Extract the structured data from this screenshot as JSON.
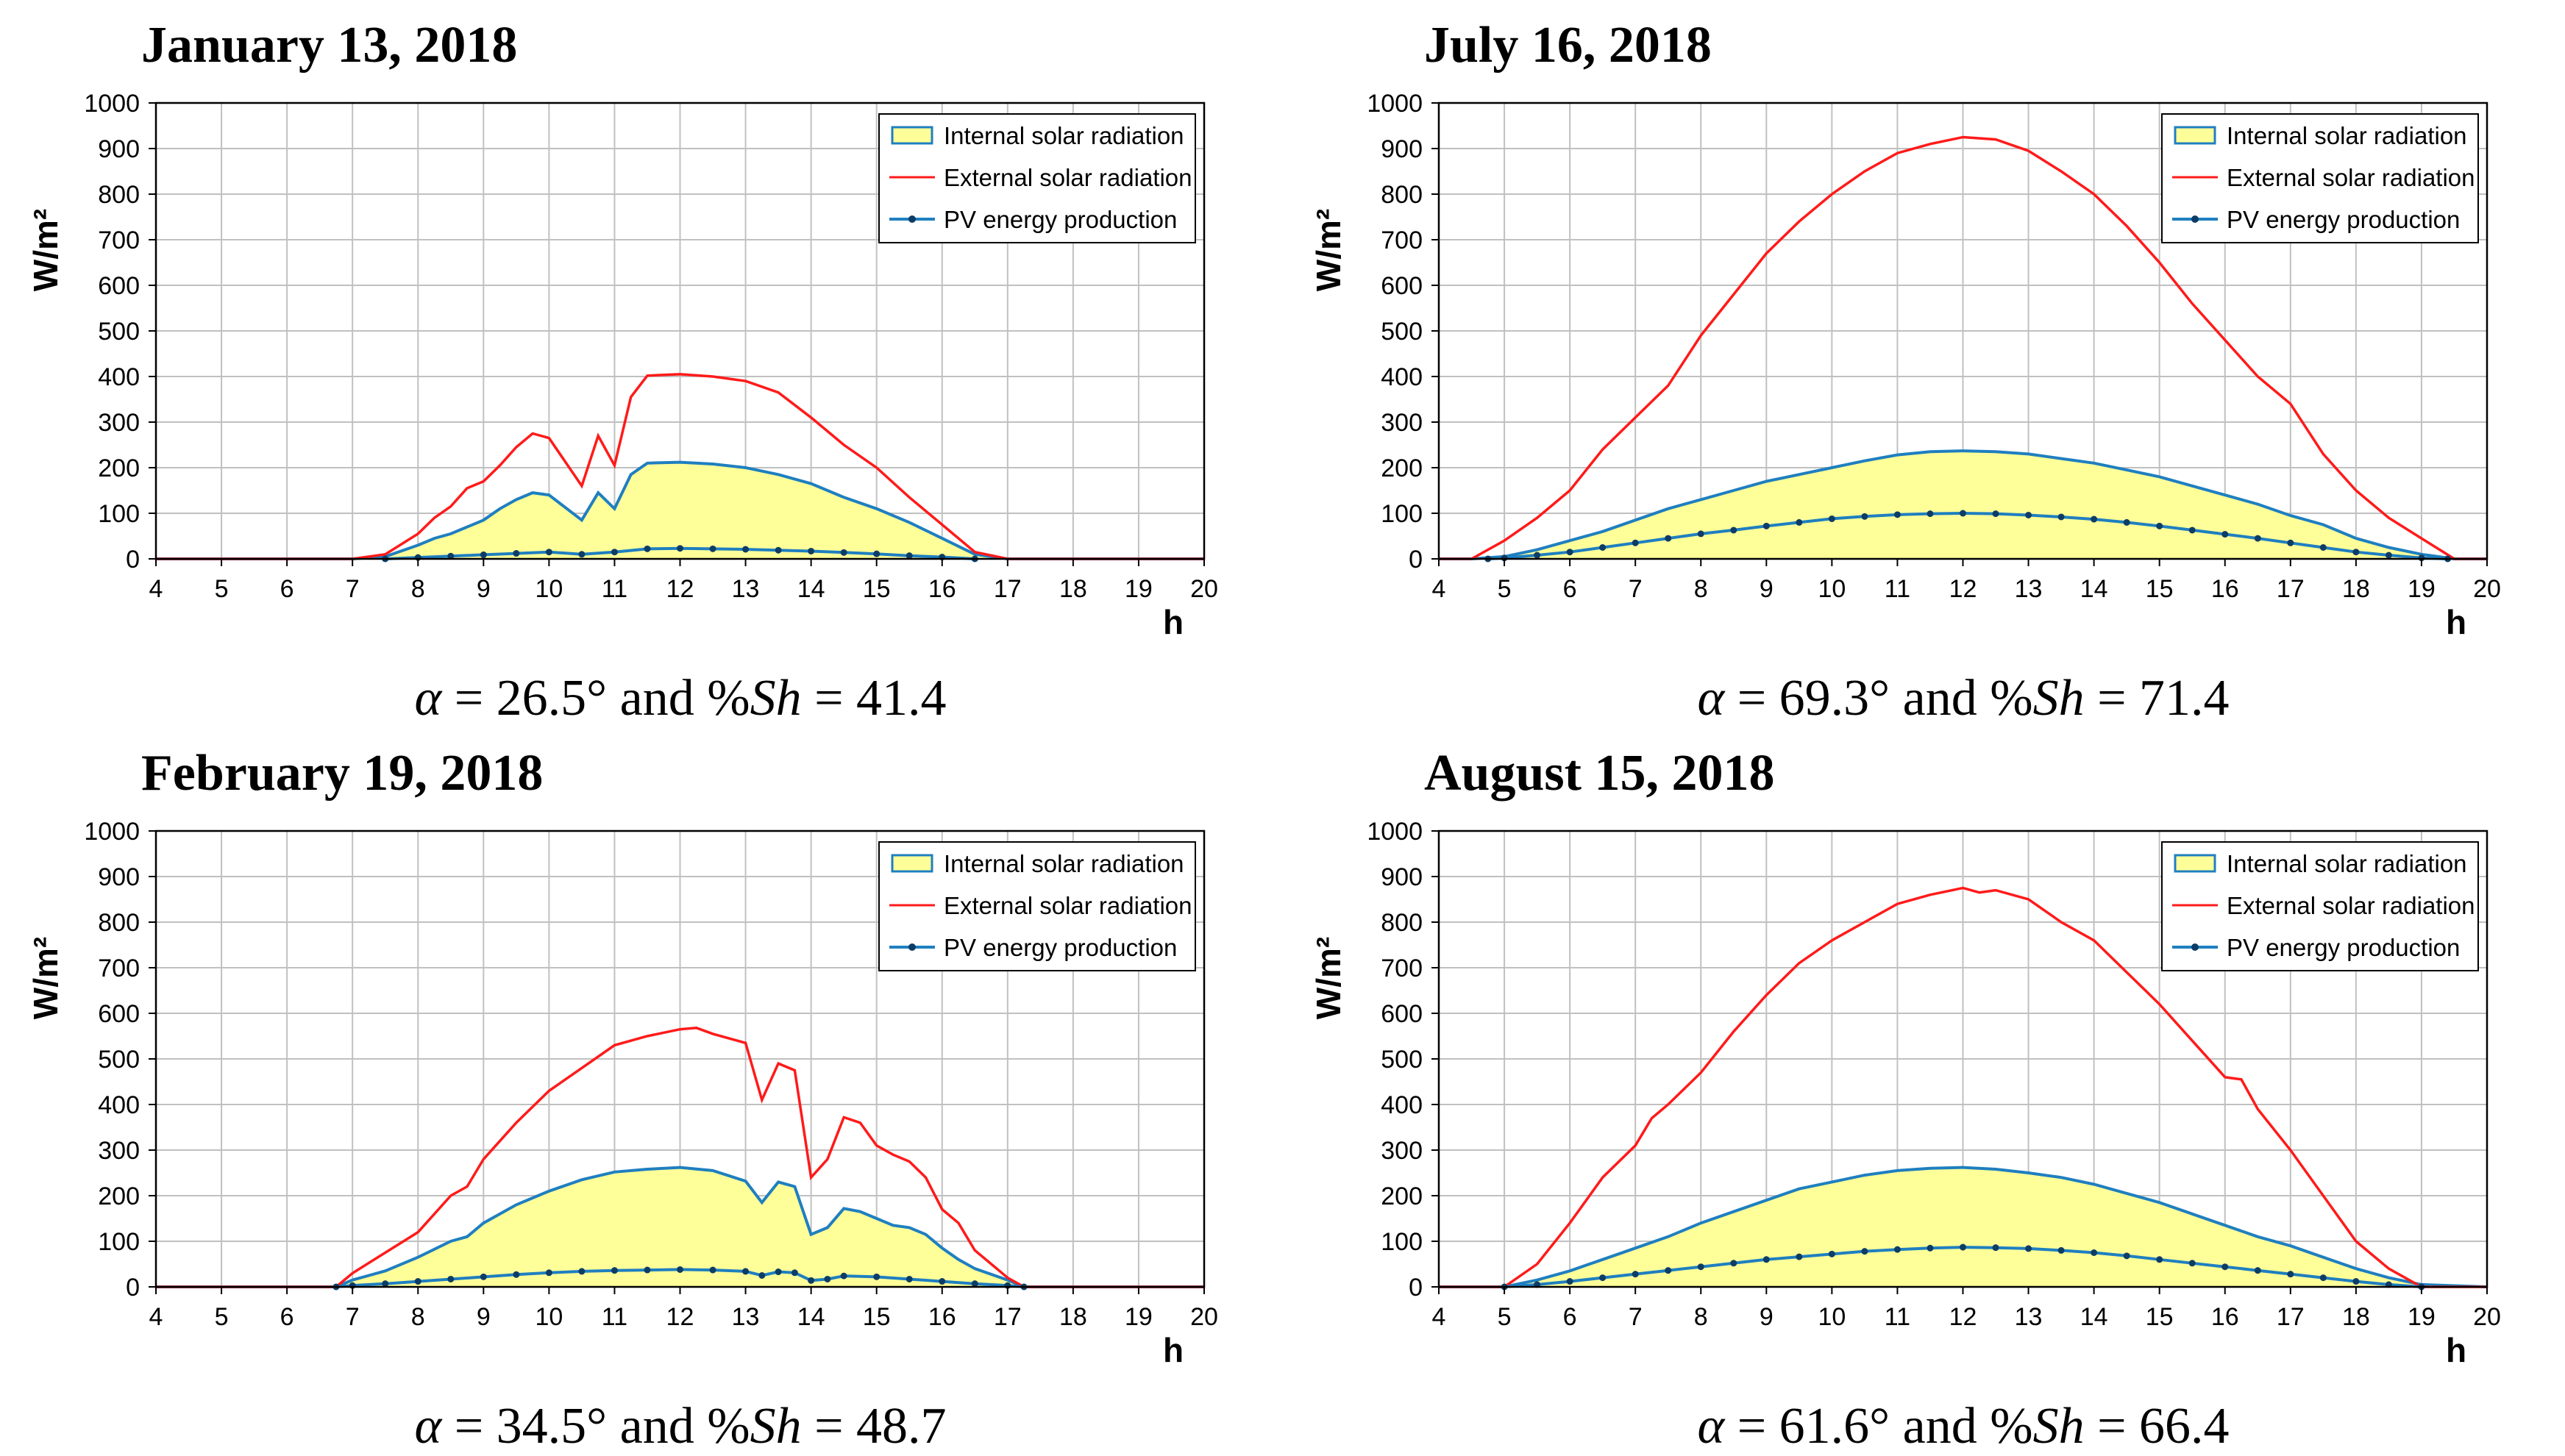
{
  "chart_data": [
    {
      "type": "area",
      "title": "January 13, 2018",
      "ylabel": "W/m²",
      "xlabel": "h",
      "xlim": [
        4,
        20
      ],
      "ylim": [
        0,
        1000
      ],
      "x_ticks": [
        4,
        5,
        6,
        7,
        8,
        9,
        10,
        11,
        12,
        13,
        14,
        15,
        16,
        17,
        18,
        19,
        20
      ],
      "y_ticks": [
        0,
        100,
        200,
        300,
        400,
        500,
        600,
        700,
        800,
        900,
        1000
      ],
      "grid": true,
      "legend_position": "top-right",
      "caption": {
        "alpha": "26.5",
        "sh": "41.4"
      },
      "series": [
        {
          "name": "Internal solar radiation",
          "color": "#1f7fc0",
          "fill": "#ffff99",
          "x": [
            4,
            7,
            7.5,
            8,
            8.25,
            8.5,
            9,
            9.25,
            9.5,
            9.75,
            10,
            10.5,
            10.75,
            11,
            11.25,
            11.5,
            12,
            12.5,
            13,
            13.5,
            14,
            14.5,
            15,
            15.5,
            16,
            16.5,
            17,
            20
          ],
          "y": [
            0,
            0,
            5,
            30,
            45,
            55,
            85,
            110,
            130,
            145,
            140,
            85,
            145,
            110,
            185,
            210,
            212,
            208,
            200,
            185,
            165,
            135,
            110,
            80,
            45,
            10,
            0,
            0
          ]
        },
        {
          "name": "External solar radiation",
          "color": "#ff1a1a",
          "x": [
            4,
            7,
            7.5,
            8,
            8.25,
            8.5,
            8.75,
            9,
            9.25,
            9.5,
            9.75,
            10,
            10.5,
            10.75,
            11,
            11.25,
            11.5,
            12,
            12.5,
            13,
            13.5,
            14,
            14.5,
            15,
            15.5,
            16,
            16.5,
            17,
            20
          ],
          "y": [
            0,
            0,
            10,
            55,
            90,
            115,
            155,
            170,
            205,
            245,
            275,
            265,
            160,
            270,
            205,
            355,
            402,
            405,
            400,
            390,
            365,
            310,
            250,
            200,
            135,
            75,
            15,
            0,
            0
          ]
        },
        {
          "name": "PV energy production",
          "color": "#1f7fc0",
          "marker": "#0d3d66",
          "x": [
            7.5,
            8,
            8.5,
            9,
            9.5,
            10,
            10.5,
            11,
            11.5,
            12,
            12.5,
            13,
            13.5,
            14,
            14.5,
            15,
            15.5,
            16,
            16.5
          ],
          "y": [
            0,
            3,
            6,
            9,
            12,
            15,
            10,
            15,
            22,
            23,
            22,
            21,
            19,
            17,
            14,
            11,
            7,
            4,
            0
          ]
        }
      ]
    },
    {
      "type": "area",
      "title": "July 16, 2018",
      "ylabel": "W/m²",
      "xlabel": "h",
      "xlim": [
        4,
        20
      ],
      "ylim": [
        0,
        1000
      ],
      "x_ticks": [
        4,
        5,
        6,
        7,
        8,
        9,
        10,
        11,
        12,
        13,
        14,
        15,
        16,
        17,
        18,
        19,
        20
      ],
      "y_ticks": [
        0,
        100,
        200,
        300,
        400,
        500,
        600,
        700,
        800,
        900,
        1000
      ],
      "grid": true,
      "legend_position": "top-right",
      "caption": {
        "alpha": "69.3",
        "sh": "71.4"
      },
      "series": [
        {
          "name": "Internal solar radiation",
          "color": "#1f7fc0",
          "fill": "#ffff99",
          "x": [
            4,
            4.5,
            5,
            5.5,
            6,
            6.5,
            7,
            7.5,
            8,
            8.5,
            9,
            9.5,
            10,
            10.5,
            11,
            11.5,
            12,
            12.5,
            13,
            13.5,
            14,
            14.5,
            15,
            15.5,
            16,
            16.5,
            17,
            17.5,
            18,
            18.5,
            19,
            19.5,
            20
          ],
          "y": [
            0,
            0,
            5,
            20,
            40,
            60,
            85,
            110,
            130,
            150,
            170,
            185,
            200,
            215,
            228,
            235,
            237,
            235,
            230,
            220,
            210,
            195,
            180,
            160,
            140,
            120,
            95,
            75,
            45,
            25,
            10,
            0,
            0
          ]
        },
        {
          "name": "External solar radiation",
          "color": "#ff1a1a",
          "x": [
            4,
            4.5,
            5,
            5.5,
            6,
            6.5,
            7,
            7.5,
            8,
            8.5,
            9,
            9.5,
            10,
            10.5,
            11,
            11.5,
            12,
            12.5,
            13,
            13.5,
            14,
            14.5,
            15,
            15.5,
            16,
            16.5,
            17,
            17.5,
            18,
            18.5,
            19,
            19.5,
            20
          ],
          "y": [
            0,
            0,
            40,
            90,
            150,
            240,
            310,
            380,
            490,
            580,
            670,
            740,
            800,
            850,
            890,
            910,
            925,
            920,
            895,
            850,
            800,
            730,
            650,
            560,
            480,
            400,
            340,
            230,
            150,
            90,
            45,
            0,
            0
          ]
        },
        {
          "name": "PV energy production",
          "color": "#1f7fc0",
          "marker": "#0d3d66",
          "x": [
            4.75,
            5,
            5.5,
            6,
            6.5,
            7,
            7.5,
            8,
            8.5,
            9,
            9.5,
            10,
            10.5,
            11,
            11.5,
            12,
            12.5,
            13,
            13.5,
            14,
            14.5,
            15,
            15.5,
            16,
            16.5,
            17,
            17.5,
            18,
            18.5,
            19,
            19.4
          ],
          "y": [
            0,
            2,
            8,
            15,
            25,
            35,
            45,
            55,
            63,
            72,
            80,
            88,
            93,
            97,
            99,
            100,
            99,
            96,
            92,
            87,
            80,
            72,
            63,
            54,
            45,
            35,
            25,
            15,
            8,
            2,
            0
          ]
        }
      ]
    },
    {
      "type": "area",
      "title": "February 19, 2018",
      "ylabel": "W/m²",
      "xlabel": "h",
      "xlim": [
        4,
        20
      ],
      "ylim": [
        0,
        1000
      ],
      "x_ticks": [
        4,
        5,
        6,
        7,
        8,
        9,
        10,
        11,
        12,
        13,
        14,
        15,
        16,
        17,
        18,
        19,
        20
      ],
      "y_ticks": [
        0,
        100,
        200,
        300,
        400,
        500,
        600,
        700,
        800,
        900,
        1000
      ],
      "grid": true,
      "legend_position": "top-right",
      "caption": {
        "alpha": "34.5",
        "sh": "48.7"
      },
      "series": [
        {
          "name": "Internal solar radiation",
          "color": "#1f7fc0",
          "fill": "#ffff99",
          "x": [
            4,
            6.75,
            7,
            7.5,
            8,
            8.5,
            8.75,
            9,
            9.5,
            10,
            10.5,
            11,
            11.5,
            12,
            12.5,
            13,
            13.25,
            13.5,
            13.75,
            14,
            14.25,
            14.5,
            14.75,
            15,
            15.25,
            15.5,
            15.75,
            16,
            16.25,
            16.5,
            17,
            17.25,
            20
          ],
          "y": [
            0,
            0,
            15,
            35,
            65,
            100,
            110,
            140,
            180,
            210,
            235,
            252,
            258,
            262,
            255,
            232,
            185,
            230,
            220,
            115,
            130,
            172,
            165,
            150,
            135,
            130,
            115,
            85,
            60,
            40,
            15,
            0,
            0
          ]
        },
        {
          "name": "External solar radiation",
          "color": "#ff1a1a",
          "x": [
            4,
            6.75,
            7,
            7.5,
            8,
            8.5,
            8.75,
            9,
            9.5,
            10,
            10.5,
            11,
            11.5,
            12,
            12.25,
            12.5,
            13,
            13.25,
            13.5,
            13.75,
            14,
            14.25,
            14.5,
            14.75,
            15,
            15.25,
            15.5,
            15.75,
            16,
            16.25,
            16.5,
            17,
            17.25,
            20
          ],
          "y": [
            0,
            0,
            30,
            75,
            120,
            200,
            220,
            280,
            360,
            430,
            480,
            530,
            550,
            565,
            568,
            555,
            535,
            410,
            490,
            475,
            240,
            280,
            372,
            360,
            310,
            290,
            275,
            240,
            170,
            140,
            80,
            20,
            0,
            0
          ]
        },
        {
          "name": "PV energy production",
          "color": "#1f7fc0",
          "marker": "#0d3d66",
          "x": [
            6.75,
            7,
            7.5,
            8,
            8.5,
            9,
            9.5,
            10,
            10.5,
            11,
            11.5,
            12,
            12.5,
            13,
            13.25,
            13.5,
            13.75,
            14,
            14.25,
            14.5,
            15,
            15.5,
            16,
            16.5,
            17,
            17.25
          ],
          "y": [
            0,
            3,
            7,
            12,
            17,
            22,
            27,
            31,
            34,
            36,
            37,
            38,
            37,
            34,
            25,
            33,
            31,
            14,
            17,
            24,
            22,
            17,
            12,
            7,
            3,
            0
          ]
        }
      ]
    },
    {
      "type": "area",
      "title": "August 15, 2018",
      "ylabel": "W/m²",
      "xlabel": "h",
      "xlim": [
        4,
        20
      ],
      "ylim": [
        0,
        1000
      ],
      "x_ticks": [
        4,
        5,
        6,
        7,
        8,
        9,
        10,
        11,
        12,
        13,
        14,
        15,
        16,
        17,
        18,
        19,
        20
      ],
      "y_ticks": [
        0,
        100,
        200,
        300,
        400,
        500,
        600,
        700,
        800,
        900,
        1000
      ],
      "grid": true,
      "legend_position": "top-right",
      "caption": {
        "alpha": "61.6",
        "sh": "66.4"
      },
      "series": [
        {
          "name": "Internal solar radiation",
          "color": "#1f7fc0",
          "fill": "#ffff99",
          "x": [
            4,
            5,
            5.5,
            6,
            6.5,
            7,
            7.5,
            8,
            8.5,
            9,
            9.5,
            10,
            10.5,
            11,
            11.5,
            12,
            12.5,
            13,
            13.5,
            14,
            14.5,
            15,
            15.5,
            16,
            16.5,
            17,
            17.5,
            18,
            18.5,
            19,
            20
          ],
          "y": [
            0,
            0,
            15,
            35,
            60,
            85,
            110,
            140,
            165,
            190,
            215,
            230,
            245,
            255,
            260,
            262,
            258,
            250,
            240,
            225,
            205,
            185,
            160,
            135,
            110,
            90,
            65,
            40,
            20,
            5,
            0
          ]
        },
        {
          "name": "External solar radiation",
          "color": "#ff1a1a",
          "x": [
            4,
            5,
            5.5,
            6,
            6.5,
            7,
            7.25,
            7.5,
            8,
            8.5,
            9,
            9.5,
            10,
            10.5,
            11,
            11.5,
            12,
            12.25,
            12.5,
            13,
            13.5,
            14,
            14.5,
            15,
            15.5,
            16,
            16.25,
            16.5,
            17,
            17.5,
            18,
            18.5,
            19,
            20
          ],
          "y": [
            0,
            0,
            50,
            140,
            240,
            310,
            370,
            400,
            470,
            560,
            640,
            710,
            760,
            800,
            840,
            860,
            875,
            865,
            870,
            850,
            800,
            760,
            690,
            620,
            540,
            460,
            455,
            390,
            300,
            200,
            100,
            40,
            0,
            0
          ]
        },
        {
          "name": "PV energy production",
          "color": "#1f7fc0",
          "marker": "#0d3d66",
          "x": [
            5,
            5.5,
            6,
            6.5,
            7,
            7.5,
            8,
            8.5,
            9,
            9.5,
            10,
            10.5,
            11,
            11.5,
            12,
            12.5,
            13,
            13.5,
            14,
            14.5,
            15,
            15.5,
            16,
            16.5,
            17,
            17.5,
            18,
            18.5,
            19
          ],
          "y": [
            0,
            5,
            12,
            20,
            28,
            36,
            44,
            52,
            60,
            66,
            72,
            78,
            82,
            85,
            87,
            86,
            84,
            80,
            75,
            68,
            60,
            52,
            44,
            36,
            28,
            20,
            12,
            5,
            0
          ]
        }
      ]
    }
  ]
}
